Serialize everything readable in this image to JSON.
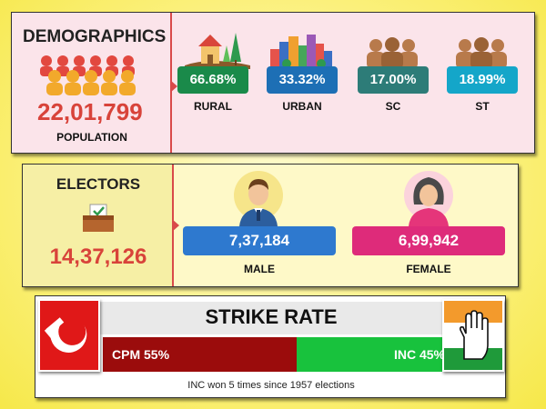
{
  "demographics": {
    "title": "DEMOGRAPHICS",
    "population_value": "22,01,799",
    "population_label": "POPULATION",
    "items": [
      {
        "value": "66.68%",
        "label": "RURAL",
        "color": "#1a8a4a",
        "icon": "rural-icon"
      },
      {
        "value": "33.32%",
        "label": "URBAN",
        "color": "#1d6fb5",
        "icon": "urban-icon"
      },
      {
        "value": "17.00%",
        "label": "SC",
        "color": "#2d7c78",
        "icon": "people-group-icon"
      },
      {
        "value": "18.99%",
        "label": "ST",
        "color": "#14a6c9",
        "icon": "people-group-icon"
      }
    ]
  },
  "electors": {
    "title": "ELECTORS",
    "total": "14,37,126",
    "male_value": "7,37,184",
    "male_label": "MALE",
    "female_value": "6,99,942",
    "female_label": "FEMALE",
    "male_color": "#2e79cf",
    "female_color": "#de2b7a"
  },
  "strike_rate": {
    "title": "STRIKE RATE",
    "cpm_label": "CPM 55%",
    "inc_label": "INC 45%",
    "cpm_share": 55,
    "inc_share": 45,
    "cpm_color": "#9b0c0c",
    "inc_color": "#18c23d",
    "footnote": "INC won 5 times since 1957 elections"
  }
}
